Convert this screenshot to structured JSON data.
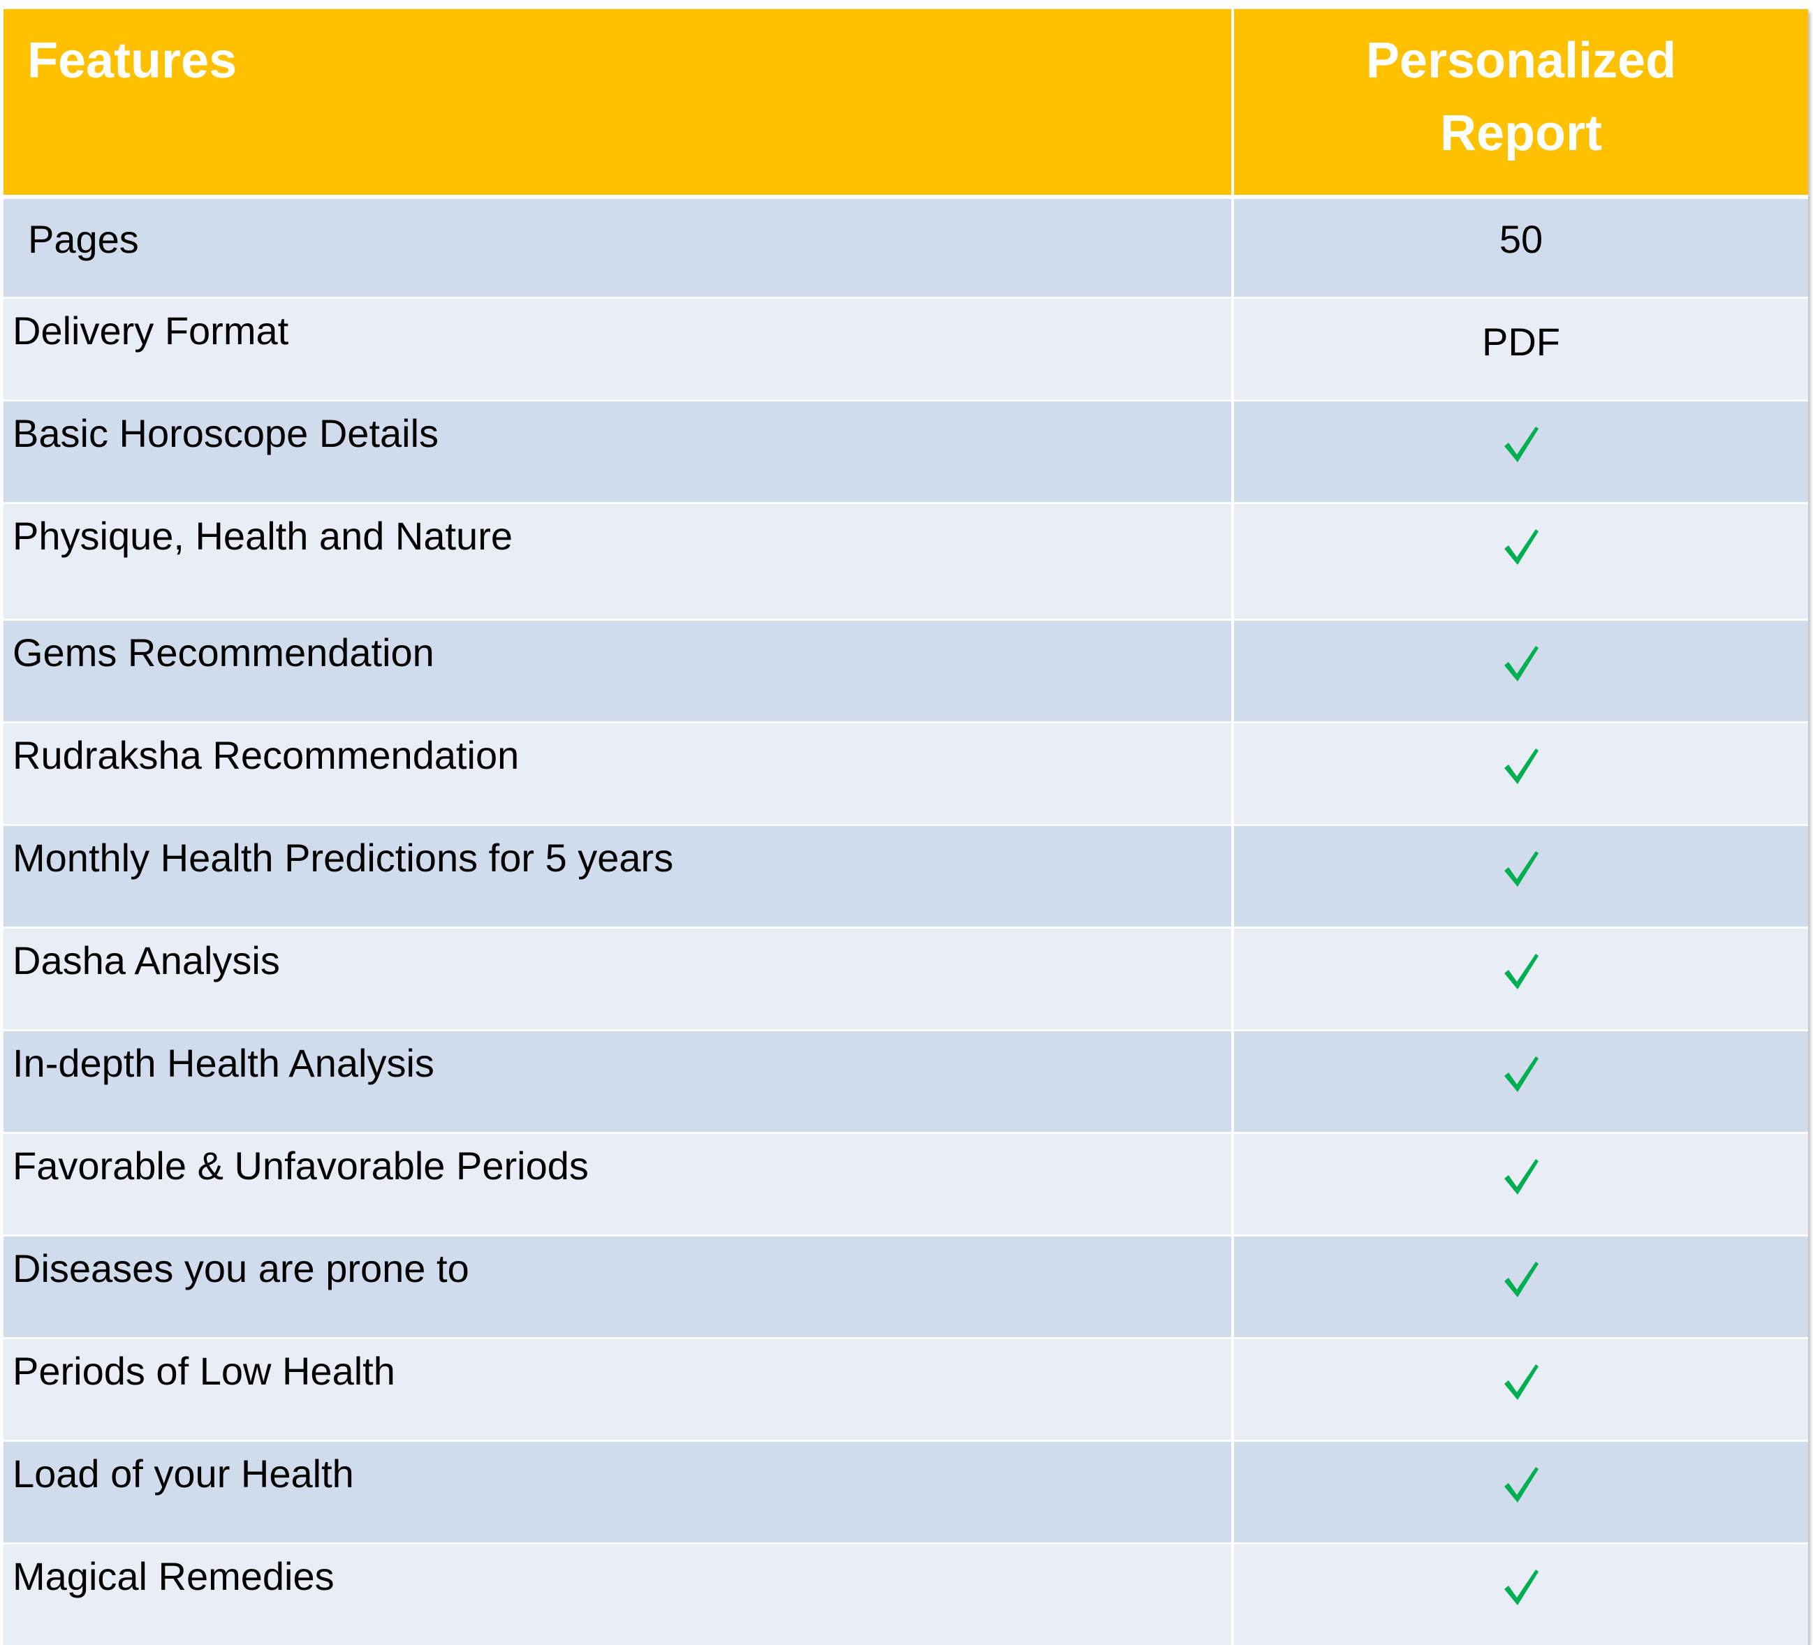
{
  "table": {
    "headers": {
      "features": "Features",
      "report_line1": "Personalized",
      "report_line2": "Report"
    },
    "accent_color": "#ffc000",
    "check_color": "#00b050",
    "rows": [
      {
        "feature": "Pages",
        "value": "50"
      },
      {
        "feature": "Delivery Format",
        "value": "PDF"
      },
      {
        "feature": "Basic Horoscope Details",
        "value": "check"
      },
      {
        "feature": "Physique, Health and Nature",
        "value": "check"
      },
      {
        "feature": "Gems Recommendation",
        "value": "check"
      },
      {
        "feature": "Rudraksha Recommendation",
        "value": "check"
      },
      {
        "feature": "Monthly Health Predictions for 5 years",
        "value": "check"
      },
      {
        "feature": "Dasha Analysis",
        "value": "check"
      },
      {
        "feature": "In-depth Health Analysis",
        "value": "check"
      },
      {
        "feature": "Favorable & Unfavorable Periods",
        "value": "check"
      },
      {
        "feature": "Diseases you are prone to",
        "value": "check"
      },
      {
        "feature": "Periods of Low Health",
        "value": "check"
      },
      {
        "feature": "Load of your Health",
        "value": "check"
      },
      {
        "feature": "Magical Remedies",
        "value": "check"
      }
    ]
  }
}
